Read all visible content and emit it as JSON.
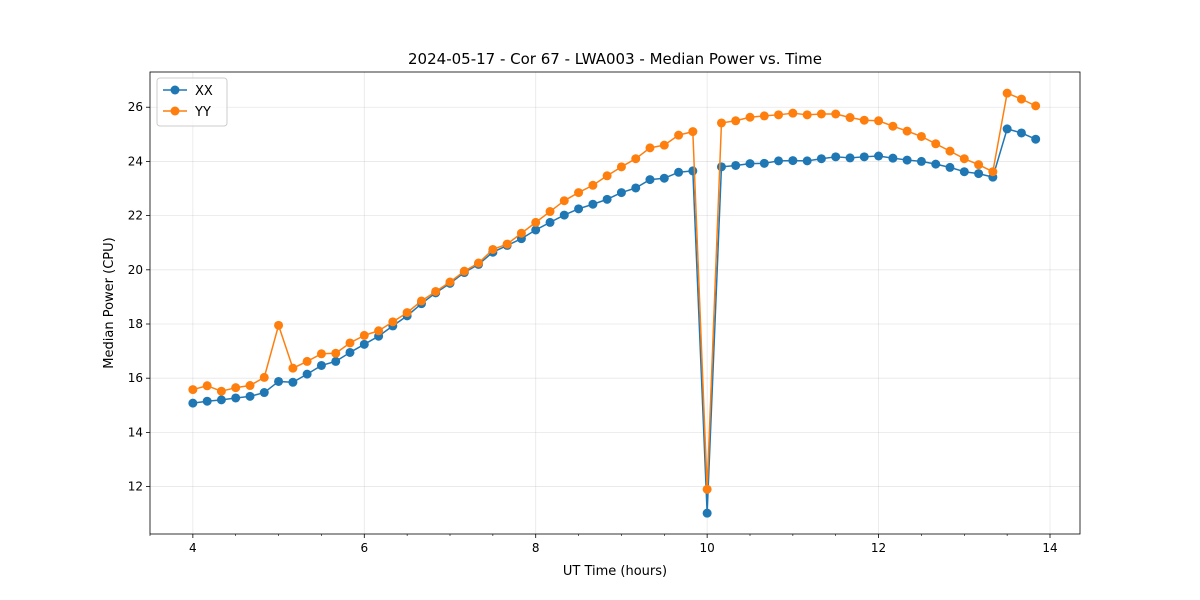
{
  "chart_data": {
    "type": "line",
    "title": "2024-05-17 - Cor 67 - LWA003 - Median Power vs. Time",
    "xlabel": "UT Time (hours)",
    "ylabel": "Median Power (CPU)",
    "xlim": [
      3.5,
      14.35
    ],
    "ylim": [
      10.25,
      27.3
    ],
    "xticks": [
      4,
      6,
      8,
      10,
      12,
      14
    ],
    "yticks": [
      12,
      14,
      16,
      18,
      20,
      22,
      24,
      26
    ],
    "x_minor_step": 0.5,
    "grid": true,
    "legend_position": "upper-left",
    "x": [
      4.0,
      4.167,
      4.333,
      4.5,
      4.667,
      4.833,
      5.0,
      5.167,
      5.333,
      5.5,
      5.667,
      5.833,
      6.0,
      6.167,
      6.333,
      6.5,
      6.667,
      6.833,
      7.0,
      7.167,
      7.333,
      7.5,
      7.667,
      7.833,
      8.0,
      8.167,
      8.333,
      8.5,
      8.667,
      8.833,
      9.0,
      9.167,
      9.333,
      9.5,
      9.667,
      9.833,
      10.0,
      10.167,
      10.333,
      10.5,
      10.667,
      10.833,
      11.0,
      11.167,
      11.333,
      11.5,
      11.667,
      11.833,
      12.0,
      12.167,
      12.333,
      12.5,
      12.667,
      12.833,
      13.0,
      13.167,
      13.333,
      13.5,
      13.667,
      13.833
    ],
    "series": [
      {
        "name": "XX",
        "color": "#1f77b4",
        "values": [
          15.08,
          15.15,
          15.2,
          15.27,
          15.33,
          15.47,
          15.88,
          15.85,
          16.15,
          16.47,
          16.62,
          16.95,
          17.25,
          17.55,
          17.93,
          18.3,
          18.75,
          19.15,
          19.5,
          19.9,
          20.2,
          20.65,
          20.9,
          21.15,
          21.47,
          21.75,
          22.02,
          22.25,
          22.42,
          22.6,
          22.85,
          23.02,
          23.33,
          23.38,
          23.6,
          23.65,
          11.02,
          23.8,
          23.85,
          23.92,
          23.93,
          24.02,
          24.03,
          24.02,
          24.1,
          24.17,
          24.13,
          24.17,
          24.2,
          24.12,
          24.05,
          24.0,
          23.9,
          23.78,
          23.62,
          23.55,
          23.42,
          25.2,
          25.05,
          24.82
        ]
      },
      {
        "name": "YY",
        "color": "#ff7f0e",
        "values": [
          15.58,
          15.72,
          15.52,
          15.65,
          15.73,
          16.03,
          17.95,
          16.37,
          16.62,
          16.9,
          16.92,
          17.3,
          17.58,
          17.75,
          18.08,
          18.42,
          18.85,
          19.2,
          19.55,
          19.95,
          20.25,
          20.75,
          20.95,
          21.35,
          21.75,
          22.15,
          22.55,
          22.85,
          23.12,
          23.47,
          23.8,
          24.1,
          24.5,
          24.6,
          24.97,
          25.1,
          11.9,
          25.42,
          25.5,
          25.63,
          25.68,
          25.72,
          25.78,
          25.72,
          25.75,
          25.75,
          25.62,
          25.52,
          25.5,
          25.3,
          25.12,
          24.92,
          24.65,
          24.38,
          24.1,
          23.88,
          23.62,
          26.52,
          26.3,
          26.05
        ]
      }
    ]
  }
}
